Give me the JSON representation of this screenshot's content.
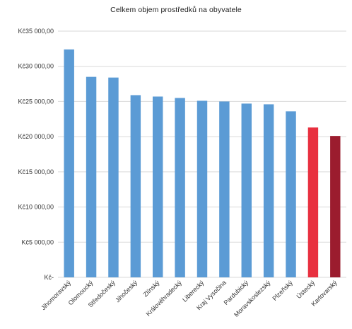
{
  "chart_data": {
    "type": "bar",
    "title": "Celkem objem prostředků na obyvatele",
    "xlabel": "",
    "ylabel": "",
    "ylim": [
      0,
      35000
    ],
    "yticks": [
      0,
      5000,
      10000,
      15000,
      20000,
      25000,
      30000,
      35000
    ],
    "ytick_labels": [
      "Kč-",
      "Kč5 000,00",
      "Kč10 000,00",
      "Kč15 000,00",
      "Kč20 000,00",
      "Kč25 000,00",
      "Kč30 000,00",
      "Kč35 000,00"
    ],
    "grid": true,
    "legend": "none",
    "categories": [
      "Jihomoravský",
      "Olomoucký",
      "Středočeský",
      "Jihočeský",
      "Zlínský",
      "Královéhradecký",
      "Liberecký",
      "Kraj Vysočina",
      "Pardubický",
      "Moravskoslezský",
      "Plzeňský",
      "Ústecký",
      "Karlovarský"
    ],
    "values": [
      32400,
      28500,
      28400,
      25900,
      25700,
      25500,
      25100,
      25000,
      24700,
      24600,
      23600,
      21300,
      20100
    ],
    "colors": {
      "default": "#5b9bd5",
      "highlight_1": "#e8303f",
      "highlight_2": "#9b1c2e",
      "grid": "#d9d9d9"
    },
    "bar_colors": [
      "#5b9bd5",
      "#5b9bd5",
      "#5b9bd5",
      "#5b9bd5",
      "#5b9bd5",
      "#5b9bd5",
      "#5b9bd5",
      "#5b9bd5",
      "#5b9bd5",
      "#5b9bd5",
      "#5b9bd5",
      "#e8303f",
      "#9b1c2e"
    ]
  }
}
